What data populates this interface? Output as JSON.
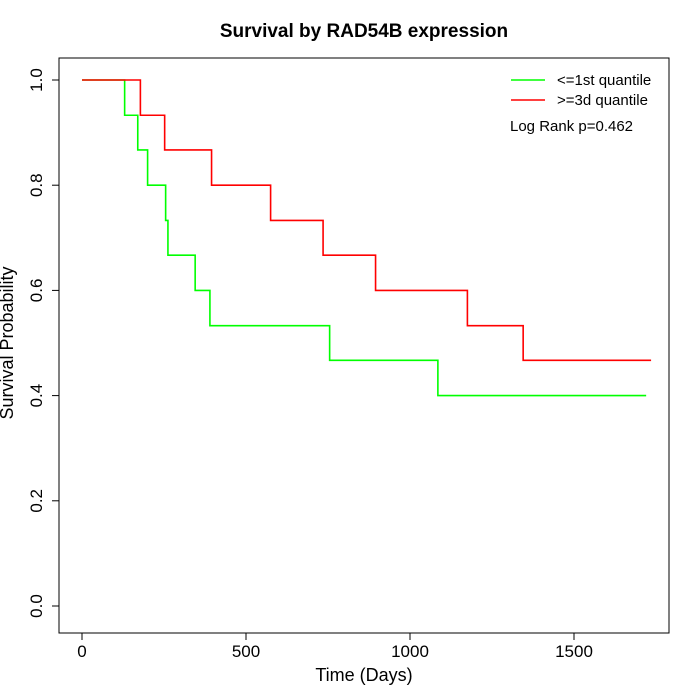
{
  "chart_data": {
    "type": "line",
    "title": "Survival by RAD54B expression",
    "xlabel": "Time (Days)",
    "ylabel": "Survival Probability",
    "xlim": [
      0,
      1750
    ],
    "ylim": [
      0,
      1.0
    ],
    "xticks": [
      0,
      500,
      1000,
      1500
    ],
    "yticks": [
      0.0,
      0.2,
      0.4,
      0.6,
      0.8,
      1.0
    ],
    "ytick_labels": [
      "0.0",
      "0.2",
      "0.4",
      "0.6",
      "0.8",
      "1.0"
    ],
    "step": true,
    "grid": false,
    "legend_position": "top-right",
    "series": [
      {
        "name": "<=1st quantile",
        "color": "#00ff00",
        "x": [
          0,
          130,
          170,
          200,
          255,
          262,
          345,
          390,
          755,
          1085,
          1720
        ],
        "y": [
          1.0,
          0.933,
          0.867,
          0.8,
          0.733,
          0.667,
          0.6,
          0.533,
          0.467,
          0.4,
          0.4
        ]
      },
      {
        "name": ">=3d quantile",
        "color": "#ff0000",
        "x": [
          0,
          178,
          252,
          395,
          575,
          735,
          895,
          1175,
          1345,
          1735
        ],
        "y": [
          1.0,
          0.933,
          0.867,
          0.8,
          0.733,
          0.667,
          0.6,
          0.533,
          0.467,
          0.467
        ]
      }
    ],
    "annotations": [
      "Log Rank p=0.462"
    ]
  }
}
